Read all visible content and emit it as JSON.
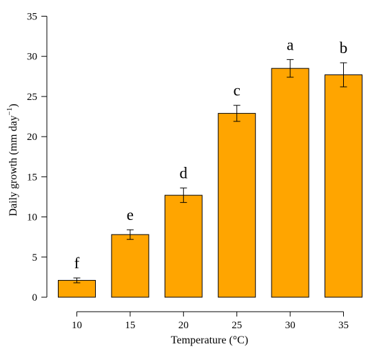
{
  "chart_data": {
    "type": "bar",
    "categories": [
      "10",
      "15",
      "20",
      "25",
      "30",
      "35"
    ],
    "values": [
      2.1,
      7.8,
      12.7,
      22.9,
      28.5,
      27.7
    ],
    "errors": [
      0.3,
      0.6,
      0.9,
      1.0,
      1.1,
      1.5
    ],
    "significance_letters": [
      "f",
      "e",
      "d",
      "c",
      "a",
      "b"
    ],
    "xlabel": "Temperature (°C)",
    "ylabel": "Daily growth (mm day",
    "ylabel_superscript": "−1",
    "ylabel_close": ")",
    "ylim": [
      0,
      35
    ],
    "yticks": [
      0,
      5,
      10,
      15,
      20,
      25,
      30,
      35
    ],
    "bar_color": "#FFA500",
    "grid": false,
    "legend": "none"
  }
}
